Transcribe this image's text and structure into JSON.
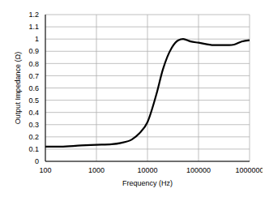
{
  "chart_data": {
    "type": "line",
    "x_label": "Frequency (Hz)",
    "y_label": "Output Impedance (Ω)",
    "log": "x",
    "grid": true,
    "color": "#000000",
    "x": [
      100,
      200,
      500,
      1000,
      2000,
      3000,
      5000,
      7000,
      10000,
      15000,
      20000,
      30000,
      40000,
      50000,
      70000,
      100000,
      200000,
      400000,
      500000,
      700000,
      1000000
    ],
    "values": [
      0.12,
      0.12,
      0.13,
      0.135,
      0.14,
      0.15,
      0.18,
      0.23,
      0.32,
      0.55,
      0.75,
      0.93,
      0.99,
      1.0,
      0.98,
      0.97,
      0.95,
      0.95,
      0.955,
      0.98,
      0.99
    ],
    "xlim": [
      100,
      1000000
    ],
    "xticks": [
      100,
      1000,
      10000,
      100000,
      1000000
    ],
    "ylim": [
      0,
      1.2
    ],
    "yticks": [
      0,
      0.1,
      0.2,
      0.3,
      0.4,
      0.5,
      0.6,
      0.7,
      0.8,
      0.9,
      1,
      1.1,
      1.2
    ]
  }
}
